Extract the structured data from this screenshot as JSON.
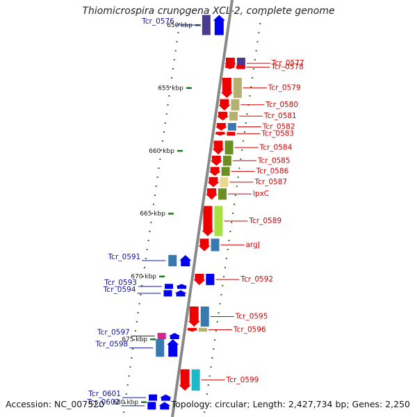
{
  "title": "Thiomicrospira crunogena XCL-2, complete genome",
  "accession": "Accession: NC_007520",
  "topology": "Topology: circular; Length: 2,427,734 bp; Genes: 2,250",
  "colors": {
    "backbone": "#888888",
    "tick": "#1a7a1a",
    "strand_minus": "#0000ee",
    "strand_plus": "#ee0000",
    "label_left": "#1010a0",
    "label_right": "#cc0000"
  },
  "scale_ticks": [
    {
      "label": "650 kbp",
      "kbp": 650
    },
    {
      "label": "655 kbp",
      "kbp": 655
    },
    {
      "label": "660 kbp",
      "kbp": 660
    },
    {
      "label": "665 kbp",
      "kbp": 665
    },
    {
      "label": "670 kbp",
      "kbp": 670
    },
    {
      "label": "675 kbp",
      "kbp": 675
    },
    {
      "label": "680 kbp",
      "kbp": 680
    }
  ],
  "genes_left": [
    {
      "label": "Tcr_0576",
      "start_kbp": 649.2,
      "end_kbp": 650.8,
      "cog": "#4b3b8c"
    },
    {
      "label": "Tcr_0591",
      "start_kbp": 668.3,
      "end_kbp": 669.2,
      "cog": "#3a78b0"
    },
    {
      "label": "Tcr_0593",
      "start_kbp": 670.6,
      "end_kbp": 671.0,
      "cog": "#0000ee"
    },
    {
      "label": "Tcr_0594",
      "start_kbp": 671.1,
      "end_kbp": 671.6,
      "cog": "#0000ee"
    },
    {
      "label": "Tcr_0597",
      "start_kbp": 674.5,
      "end_kbp": 675.0,
      "cog": "#e0208f"
    },
    {
      "label": "Tcr_0598",
      "start_kbp": 675.0,
      "end_kbp": 676.4,
      "cog": "#3a78b0"
    },
    {
      "label": "Tcr_0601",
      "start_kbp": 679.4,
      "end_kbp": 679.9,
      "cog": "#0000ee"
    },
    {
      "label": "Tcr_0602",
      "start_kbp": 680.0,
      "end_kbp": 680.6,
      "cog": "#0000ee"
    }
  ],
  "genes_right": [
    {
      "label": "Tcr_0577",
      "start_kbp": 652.6,
      "end_kbp": 653.5,
      "cog": "#4b3b8c"
    },
    {
      "label": "Tcr_0578",
      "start_kbp": 653.2,
      "end_kbp": 653.5,
      "cog": "#ee0000"
    },
    {
      "label": "Tcr_0579",
      "start_kbp": 654.2,
      "end_kbp": 655.8,
      "cog": "#b8b070"
    },
    {
      "label": "Tcr_0580",
      "start_kbp": 655.9,
      "end_kbp": 656.8,
      "cog": "#b8b070"
    },
    {
      "label": "Tcr_0581",
      "start_kbp": 656.9,
      "end_kbp": 657.6,
      "cog": "#b8b070"
    },
    {
      "label": "Tcr_0582",
      "start_kbp": 657.8,
      "end_kbp": 658.4,
      "cog": "#3a78b0"
    },
    {
      "label": "Tcr_0583",
      "start_kbp": 658.5,
      "end_kbp": 658.8,
      "cog": "#ee0000"
    },
    {
      "label": "Tcr_0584",
      "start_kbp": 659.2,
      "end_kbp": 660.3,
      "cog": "#6b8e23"
    },
    {
      "label": "Tcr_0585",
      "start_kbp": 660.4,
      "end_kbp": 661.2,
      "cog": "#6b8e23"
    },
    {
      "label": "Tcr_0586",
      "start_kbp": 661.3,
      "end_kbp": 662.0,
      "cog": "#6b8e23"
    },
    {
      "label": "Tcr_0587",
      "start_kbp": 662.1,
      "end_kbp": 662.9,
      "cog": "#e8d890"
    },
    {
      "label": "lpxC",
      "start_kbp": 663.0,
      "end_kbp": 663.9,
      "cog": "#6b8e23"
    },
    {
      "label": "Tcr_0589",
      "start_kbp": 664.4,
      "end_kbp": 666.8,
      "cog": "#a8e040"
    },
    {
      "label": "argJ",
      "start_kbp": 667.0,
      "end_kbp": 668.0,
      "cog": "#3a78b0"
    },
    {
      "label": "Tcr_0592",
      "start_kbp": 669.8,
      "end_kbp": 670.7,
      "cog": "#0000ee"
    },
    {
      "label": "Tcr_0595",
      "start_kbp": 672.4,
      "end_kbp": 674.0,
      "cog": "#3a78b0"
    },
    {
      "label": "Tcr_0596",
      "start_kbp": 674.1,
      "end_kbp": 674.4,
      "cog": "#b8b070"
    },
    {
      "label": "Tcr_0599",
      "start_kbp": 677.4,
      "end_kbp": 679.1,
      "cog": "#20b8c8"
    }
  ]
}
